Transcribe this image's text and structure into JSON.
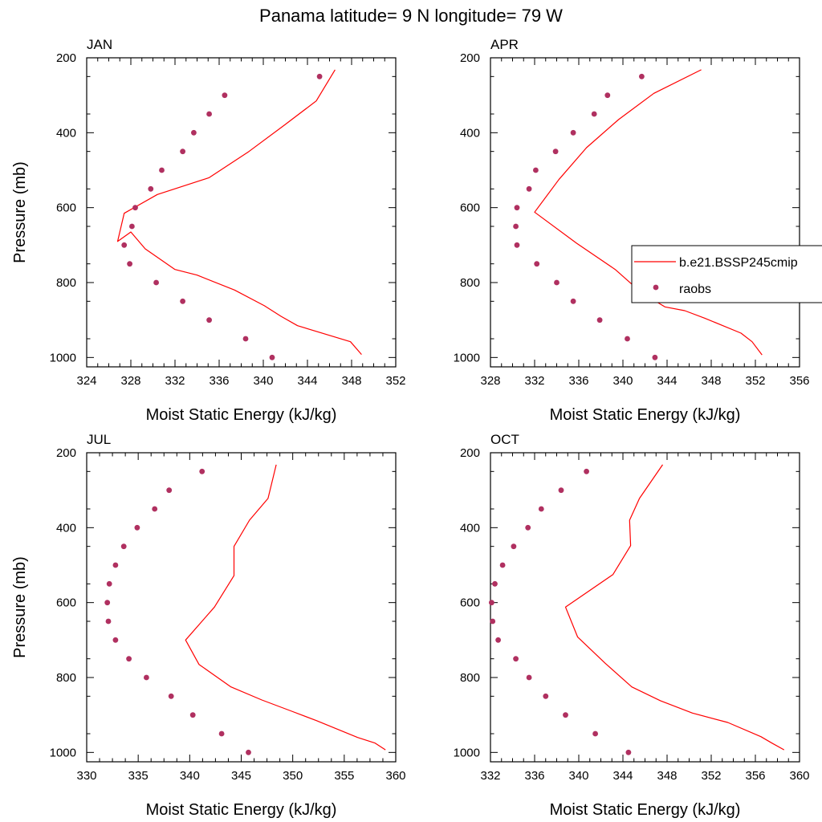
{
  "figure": {
    "title": "Panama  latitude= 9 N longitude= 79 W"
  },
  "legend": {
    "model_label": "b.e21.BSSP245cmip",
    "obs_label": "raobs"
  },
  "colors": {
    "model_line": "#ff0000",
    "obs_marker": "#b03060",
    "axis": "#000000"
  },
  "chart_data": [
    {
      "type": "scatter",
      "panel": "JAN",
      "title": "JAN",
      "xlabel": "Moist Static Energy (kJ/kg)",
      "ylabel": "Pressure (mb)",
      "xlim": [
        324,
        352
      ],
      "ylim": [
        1025,
        200
      ],
      "xticks": [
        324,
        328,
        332,
        336,
        340,
        344,
        348,
        352
      ],
      "yticks": [
        200,
        400,
        600,
        800,
        1000
      ],
      "series": [
        {
          "name": "b.e21.BSSP245cmip",
          "kind": "line",
          "x": [
            348.9,
            347.9,
            343.1,
            341.6,
            340.1,
            337.4,
            334.0,
            332.0,
            329.3,
            328.0,
            326.8,
            327.4,
            330.4,
            335.1,
            338.7,
            341.9,
            344.8,
            346.5
          ],
          "y": [
            992,
            958,
            915,
            890,
            862,
            820,
            780,
            765,
            710,
            665,
            690,
            615,
            565,
            520,
            450,
            380,
            315,
            232
          ]
        },
        {
          "name": "raobs",
          "kind": "markers",
          "x": [
            340.8,
            338.4,
            335.1,
            332.7,
            330.3,
            327.9,
            327.4,
            328.1,
            328.4,
            329.8,
            330.8,
            332.7,
            333.7,
            335.1,
            336.5,
            345.1
          ],
          "y": [
            1000,
            950,
            900,
            850,
            800,
            750,
            700,
            650,
            600,
            550,
            500,
            450,
            400,
            350,
            300,
            250
          ]
        }
      ]
    },
    {
      "type": "scatter",
      "panel": "APR",
      "title": "APR",
      "xlabel": "Moist Static Energy (kJ/kg)",
      "ylabel": "",
      "xlim": [
        328,
        356
      ],
      "ylim": [
        1025,
        200
      ],
      "xticks": [
        328,
        332,
        336,
        340,
        344,
        348,
        352,
        356
      ],
      "yticks": [
        200,
        400,
        600,
        800,
        1000
      ],
      "series": [
        {
          "name": "b.e21.BSSP245cmip",
          "kind": "line",
          "x": [
            352.6,
            351.7,
            350.7,
            347.4,
            345.6,
            343.8,
            341.6,
            339.3,
            335.8,
            332.0,
            334.2,
            336.7,
            339.6,
            342.8,
            347.1
          ],
          "y": [
            993,
            958,
            935,
            895,
            875,
            865,
            825,
            765,
            695,
            612,
            525,
            440,
            365,
            295,
            232
          ]
        },
        {
          "name": "raobs",
          "kind": "markers",
          "x": [
            342.9,
            340.4,
            337.9,
            335.5,
            334.0,
            332.2,
            330.4,
            330.3,
            330.4,
            331.5,
            332.1,
            333.9,
            335.5,
            337.4,
            338.6,
            341.7
          ],
          "y": [
            1000,
            950,
            900,
            850,
            800,
            750,
            700,
            650,
            600,
            550,
            500,
            450,
            400,
            350,
            300,
            250
          ]
        }
      ]
    },
    {
      "type": "scatter",
      "panel": "JUL",
      "title": "JUL",
      "xlabel": "Moist Static Energy (kJ/kg)",
      "ylabel": "Pressure (mb)",
      "xlim": [
        330,
        360
      ],
      "ylim": [
        1025,
        200
      ],
      "xticks": [
        330,
        335,
        340,
        345,
        350,
        355,
        360
      ],
      "yticks": [
        200,
        400,
        600,
        800,
        1000
      ],
      "series": [
        {
          "name": "b.e21.BSSP245cmip",
          "kind": "line",
          "x": [
            359.0,
            358.0,
            356.3,
            352.3,
            349.9,
            347.0,
            344.0,
            340.9,
            339.6,
            342.4,
            344.3,
            344.3,
            345.8,
            347.6,
            348.4
          ],
          "y": [
            993,
            975,
            960,
            915,
            890,
            860,
            825,
            765,
            700,
            612,
            528,
            450,
            380,
            322,
            232
          ]
        },
        {
          "name": "raobs",
          "kind": "markers",
          "x": [
            345.7,
            343.1,
            340.3,
            338.2,
            335.8,
            334.1,
            332.8,
            332.1,
            332.0,
            332.2,
            332.8,
            333.6,
            334.9,
            336.6,
            338.0,
            341.2
          ],
          "y": [
            1000,
            950,
            900,
            850,
            800,
            750,
            700,
            650,
            600,
            550,
            500,
            450,
            400,
            350,
            300,
            250
          ]
        }
      ]
    },
    {
      "type": "scatter",
      "panel": "OCT",
      "title": "OCT",
      "xlabel": "Moist Static Energy (kJ/kg)",
      "ylabel": "",
      "xlim": [
        332,
        360
      ],
      "ylim": [
        1025,
        200
      ],
      "xticks": [
        332,
        336,
        340,
        344,
        348,
        352,
        356,
        360
      ],
      "yticks": [
        200,
        400,
        600,
        800,
        1000
      ],
      "series": [
        {
          "name": "b.e21.BSSP245cmip",
          "kind": "line",
          "x": [
            358.6,
            357.5,
            356.5,
            353.5,
            350.3,
            347.4,
            344.8,
            342.4,
            339.9,
            338.8,
            343.1,
            344.7,
            344.6,
            345.5,
            347.6
          ],
          "y": [
            993,
            975,
            958,
            920,
            895,
            862,
            825,
            762,
            692,
            612,
            525,
            448,
            380,
            322,
            232
          ]
        },
        {
          "name": "raobs",
          "kind": "markers",
          "x": [
            344.5,
            341.5,
            338.8,
            337.0,
            335.5,
            334.3,
            332.7,
            332.2,
            332.1,
            332.4,
            333.1,
            334.1,
            335.4,
            336.6,
            338.4,
            340.7
          ],
          "y": [
            1000,
            950,
            900,
            850,
            800,
            750,
            700,
            650,
            600,
            550,
            500,
            450,
            400,
            350,
            300,
            250
          ]
        }
      ]
    }
  ]
}
